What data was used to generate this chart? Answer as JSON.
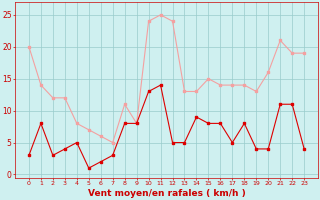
{
  "hours": [
    0,
    1,
    2,
    3,
    4,
    5,
    6,
    7,
    8,
    9,
    10,
    11,
    12,
    13,
    14,
    15,
    16,
    17,
    18,
    19,
    20,
    21,
    22,
    23
  ],
  "wind_avg": [
    3,
    8,
    3,
    4,
    5,
    1,
    2,
    3,
    8,
    8,
    13,
    14,
    5,
    5,
    9,
    8,
    8,
    5,
    8,
    4,
    4,
    11,
    11,
    4
  ],
  "wind_gust": [
    20,
    14,
    12,
    12,
    8,
    7,
    6,
    5,
    11,
    8,
    24,
    25,
    24,
    13,
    13,
    15,
    14,
    14,
    14,
    13,
    16,
    21,
    19,
    19
  ],
  "color_avg": "#dd0000",
  "color_gust": "#f4a0a0",
  "bg_color": "#cff0f0",
  "grid_color": "#99cccc",
  "xlabel": "Vent moyen/en rafales ( km/h )",
  "xlabel_color": "#cc0000",
  "tick_color": "#cc0000",
  "ylim": [
    -0.5,
    27
  ],
  "yticks": [
    0,
    5,
    10,
    15,
    20,
    25
  ],
  "figsize": [
    3.2,
    2.0
  ],
  "dpi": 100
}
